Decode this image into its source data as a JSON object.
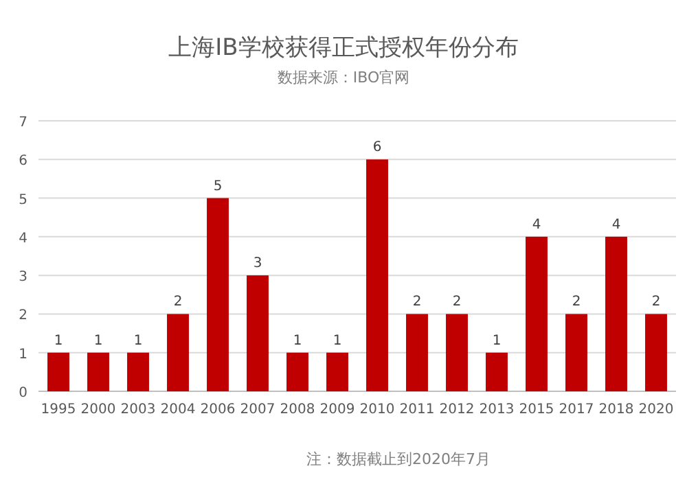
{
  "chart_data": {
    "type": "bar",
    "title": "上海IB学校获得正式授权年份分布",
    "subtitle": "数据来源：IBO官网",
    "categories": [
      "1995",
      "2000",
      "2003",
      "2004",
      "2006",
      "2007",
      "2008",
      "2009",
      "2010",
      "2011",
      "2012",
      "2013",
      "2015",
      "2017",
      "2018",
      "2020"
    ],
    "values": [
      1,
      1,
      1,
      2,
      5,
      3,
      1,
      1,
      6,
      2,
      2,
      1,
      4,
      2,
      4,
      2
    ],
    "color": "#c00000",
    "ylim": [
      0,
      7
    ],
    "yticks": [
      0,
      1,
      2,
      3,
      4,
      5,
      6,
      7
    ],
    "grid": "y",
    "data_labels": true,
    "annotations": [
      "注：数据截止到2020年7月"
    ]
  }
}
